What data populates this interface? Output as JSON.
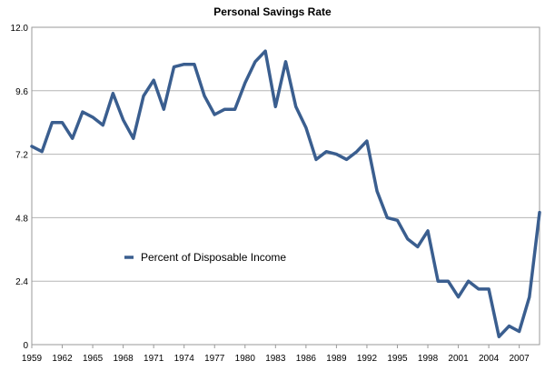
{
  "chart_data": {
    "type": "line",
    "title": "Personal Savings Rate",
    "xlabel": "",
    "ylabel": "",
    "ylim": [
      0,
      12
    ],
    "xlim": [
      1959,
      2009
    ],
    "y_ticks": [
      "0",
      "2.4",
      "4.8",
      "7.2",
      "9.6",
      "12.0"
    ],
    "x_ticks": [
      "1959",
      "1962",
      "1965",
      "1968",
      "1971",
      "1974",
      "1977",
      "1980",
      "1983",
      "1986",
      "1989",
      "1992",
      "1995",
      "1998",
      "2001",
      "2004",
      "2007"
    ],
    "grid": "horizontal",
    "legend_position": "center-left",
    "series": [
      {
        "name": "Percent of Disposable Income",
        "color": "#3a5e8f",
        "x": [
          1959,
          1960,
          1961,
          1962,
          1963,
          1964,
          1965,
          1966,
          1967,
          1968,
          1969,
          1970,
          1971,
          1972,
          1973,
          1974,
          1975,
          1976,
          1977,
          1978,
          1979,
          1980,
          1981,
          1982,
          1983,
          1984,
          1985,
          1986,
          1987,
          1988,
          1989,
          1990,
          1991,
          1992,
          1993,
          1994,
          1995,
          1996,
          1997,
          1998,
          1999,
          2000,
          2001,
          2002,
          2003,
          2004,
          2005,
          2006,
          2007,
          2008,
          2009
        ],
        "values": [
          7.5,
          7.3,
          8.4,
          8.4,
          7.8,
          8.8,
          8.6,
          8.3,
          9.5,
          8.5,
          7.8,
          9.4,
          10.0,
          8.9,
          10.5,
          10.6,
          10.6,
          9.4,
          8.7,
          8.9,
          8.9,
          9.9,
          10.7,
          11.1,
          9.0,
          10.7,
          9.0,
          8.2,
          7.0,
          7.3,
          7.2,
          7.0,
          7.3,
          7.7,
          5.8,
          4.8,
          4.7,
          4.0,
          3.7,
          4.3,
          2.4,
          2.4,
          1.8,
          2.4,
          2.1,
          2.1,
          0.3,
          0.7,
          0.5,
          1.8,
          5.0
        ]
      }
    ]
  }
}
